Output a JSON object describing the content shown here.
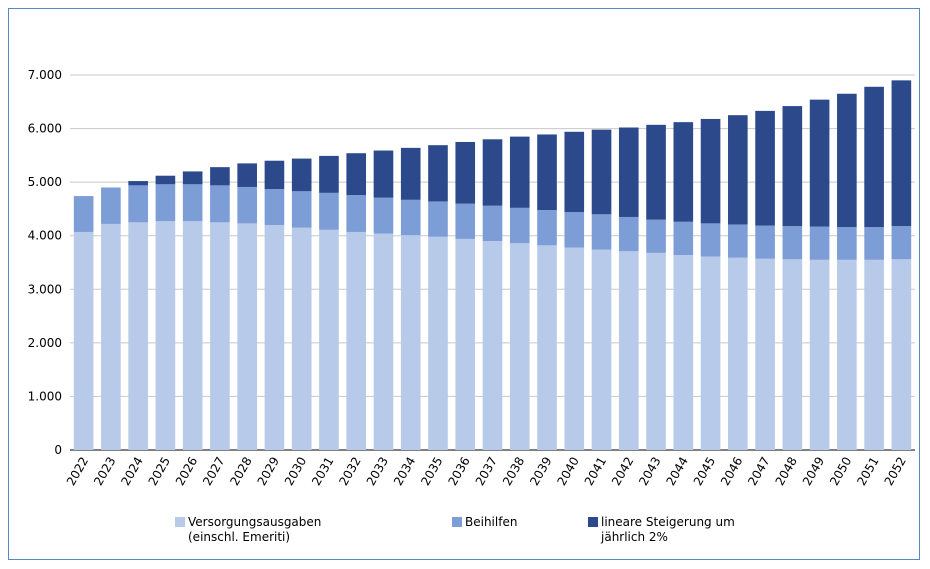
{
  "chart_data": {
    "type": "stacked-bar",
    "categories": [
      "2022",
      "2023",
      "2024",
      "2025",
      "2026",
      "2027",
      "2028",
      "2029",
      "2030",
      "2031",
      "2032",
      "2033",
      "2034",
      "2035",
      "2036",
      "2037",
      "2038",
      "2039",
      "2040",
      "2041",
      "2042",
      "2043",
      "2044",
      "2045",
      "2046",
      "2047",
      "2048",
      "2049",
      "2050",
      "2051",
      "2052"
    ],
    "series": [
      {
        "name": "Versorgungsausgaben (einschl. Emeriti)",
        "color": "#b8cae9",
        "values": [
          4070,
          4220,
          4250,
          4270,
          4270,
          4250,
          4230,
          4200,
          4150,
          4110,
          4070,
          4040,
          4010,
          3980,
          3940,
          3900,
          3860,
          3820,
          3780,
          3740,
          3710,
          3680,
          3640,
          3610,
          3590,
          3570,
          3560,
          3550,
          3550,
          3550,
          3560
        ]
      },
      {
        "name": "Beihilfen",
        "color": "#7d9dd6",
        "values": [
          670,
          680,
          690,
          690,
          690,
          690,
          680,
          670,
          680,
          690,
          690,
          670,
          660,
          660,
          660,
          660,
          660,
          660,
          660,
          660,
          640,
          620,
          620,
          620,
          620,
          620,
          620,
          620,
          610,
          610,
          620
        ]
      },
      {
        "name": "lineare Steigerung um jährlich 2%",
        "color": "#2c4a8b",
        "values": [
          0,
          0,
          80,
          160,
          240,
          340,
          440,
          530,
          610,
          690,
          780,
          880,
          970,
          1050,
          1150,
          1240,
          1330,
          1410,
          1500,
          1580,
          1670,
          1770,
          1860,
          1950,
          2040,
          2140,
          2240,
          2370,
          2490,
          2620,
          2720
        ]
      }
    ],
    "ylim": [
      0,
      7000
    ],
    "yticks": [
      0,
      {
        "value": 1000,
        "label": "1.000"
      },
      {
        "value": 2000,
        "label": "2.000"
      },
      {
        "value": 3000,
        "label": "3.000"
      },
      {
        "value": 4000,
        "label": "4.000"
      },
      {
        "value": 5000,
        "label": "5.000"
      },
      {
        "value": 6000,
        "label": "6.000"
      },
      {
        "value": 7000,
        "label": "7.000"
      }
    ],
    "grid": true,
    "legend": "bottom"
  }
}
